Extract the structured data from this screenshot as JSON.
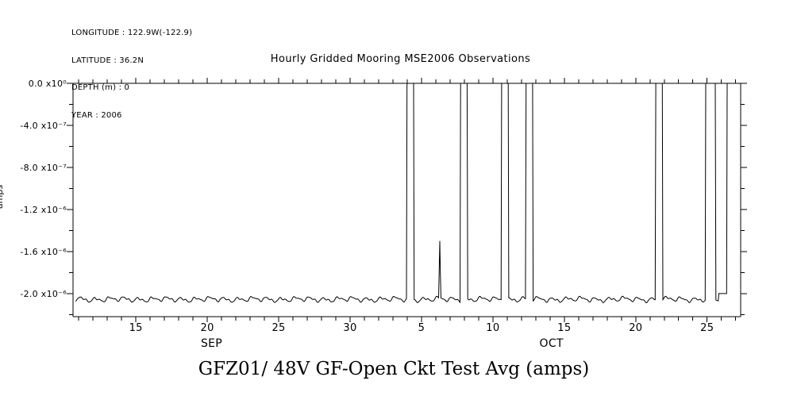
{
  "meta": {
    "longitude": "LONGITUDE : 122.9W(-122.9)",
    "latitude": "LATITUDE : 36.2N",
    "depth": "DEPTH (m) : 0",
    "year": "YEAR : 2006"
  },
  "title": "Hourly Gridded Mooring MSE2006 Observations",
  "bottom_title": "GFZ01/ 48V GF-Open Ckt Test Avg (amps)",
  "y_axis_label": "amps",
  "colors": {
    "foreground": "#000000",
    "background": "#ffffff"
  },
  "chart_data": {
    "type": "line",
    "title": "Hourly Gridded Mooring MSE2006 Observations",
    "series_name": "GFZ01/ 48V GF-Open Ckt Test Avg (amps)",
    "units": "amps",
    "sampling": "hourly",
    "x_unit": "day index from Sep 1 2006 (Oct d = 30 + d)",
    "x_range_days": [
      10.6,
      57.35
    ],
    "x_major_ticks": [
      {
        "day": 15,
        "label": "15"
      },
      {
        "day": 20,
        "label": "20"
      },
      {
        "day": 25,
        "label": "25"
      },
      {
        "day": 30,
        "label": "30"
      },
      {
        "day": 35,
        "label": "5"
      },
      {
        "day": 40,
        "label": "10"
      },
      {
        "day": 45,
        "label": "15"
      },
      {
        "day": 50,
        "label": "20"
      },
      {
        "day": 55,
        "label": "25"
      }
    ],
    "x_minor_tick_interval_days": 1,
    "month_labels": [
      {
        "label": "SEP",
        "center_day": 20.3
      },
      {
        "label": "OCT",
        "center_day": 44.1
      }
    ],
    "ylim": [
      -2.22e-06,
      0
    ],
    "y_ticks": [
      {
        "value": 0,
        "label": "0.0 x10⁰"
      },
      {
        "value": -4e-07,
        "label": "-4.0 x10⁻⁷"
      },
      {
        "value": -8e-07,
        "label": "-8.0 x10⁻⁷"
      },
      {
        "value": -1.2e-06,
        "label": "-1.2 x10⁻⁶"
      },
      {
        "value": -1.6e-06,
        "label": "-1.6 x10⁻⁶"
      },
      {
        "value": -2e-06,
        "label": "-2.0 x10⁻⁶"
      }
    ],
    "y_minor_tick_interval": 2e-07,
    "baseline_amps": -2.055e-06,
    "daily_oscillation_amplitude_amps": 3e-08,
    "zero_pulses_days": [
      [
        33.95,
        34.45
      ],
      [
        37.7,
        38.2
      ],
      [
        40.6,
        41.1
      ],
      [
        42.3,
        42.8
      ],
      [
        51.4,
        51.9
      ],
      [
        54.9,
        55.6
      ],
      [
        56.4,
        57.35
      ]
    ],
    "partial_spike": {
      "day": 36.3,
      "peak_amps": -1.5e-06,
      "shoulder_amps": -1.8e-06
    },
    "shelf": {
      "start_day": 55.8,
      "end_day": 56.4,
      "value_amps": -2e-06
    },
    "line_color": "#000000",
    "grid": false,
    "legend": "none"
  }
}
